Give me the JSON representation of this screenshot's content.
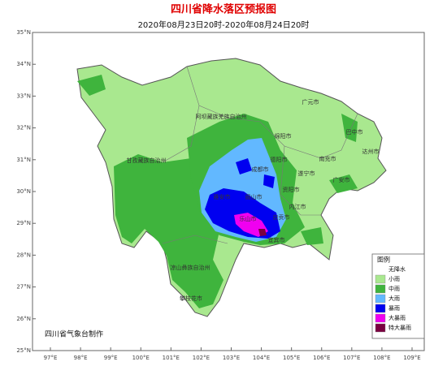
{
  "header": {
    "title": "四川省降水落区预报图",
    "subtitle": "2020年08月23日20时-2020年08月24日20时"
  },
  "map": {
    "lat_labels": [
      "35°N",
      "34°N",
      "33°N",
      "32°N",
      "31°N",
      "30°N",
      "29°N",
      "28°N",
      "27°N",
      "26°N",
      "25°N"
    ],
    "lon_labels": [
      "97°E",
      "98°E",
      "99°E",
      "100°E",
      "101°E",
      "102°E",
      "103°E",
      "104°E",
      "105°E",
      "106°E",
      "107°E",
      "108°E",
      "109°E"
    ],
    "regions": [
      "阿坝藏族羌族自治州",
      "甘孜藏族自治州",
      "凉山彝族自治州",
      "攀枝花市",
      "广元市",
      "巴中市",
      "达州市",
      "绵阳市",
      "德阳市",
      "南充市",
      "遂宁市",
      "广安市",
      "成都市",
      "资阳市",
      "雅安市",
      "眉山市",
      "内江市",
      "乐山市",
      "自贡市",
      "宜宾市"
    ]
  },
  "legend": {
    "title": "图例",
    "items": [
      {
        "label": "无降水",
        "color": "#ffffff"
      },
      {
        "label": "小雨",
        "color": "#a9e88f"
      },
      {
        "label": "中雨",
        "color": "#3fb43d"
      },
      {
        "label": "大雨",
        "color": "#62b8ff"
      },
      {
        "label": "暴雨",
        "color": "#0000f0"
      },
      {
        "label": "大暴雨",
        "color": "#f000f0"
      },
      {
        "label": "特大暴雨",
        "color": "#7a0040"
      }
    ]
  },
  "footer": {
    "credit": "四川省气象台制作"
  }
}
